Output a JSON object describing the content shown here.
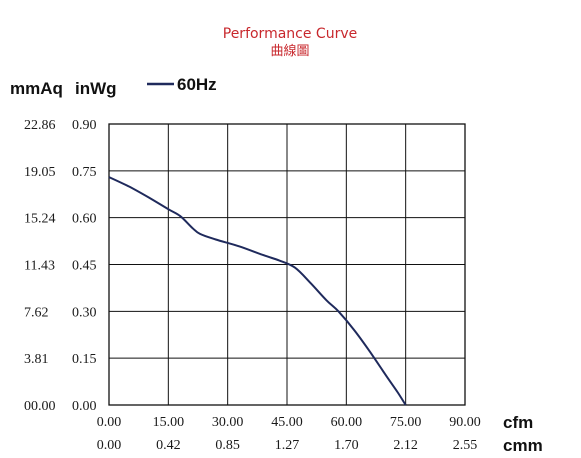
{
  "chart_data": {
    "type": "line",
    "title": "Performance Curve",
    "subtitle": "曲線圖",
    "ylabel_primary": "mmAq",
    "ylabel_secondary": "inWg",
    "xlabel_primary": "cfm",
    "xlabel_secondary": "cmm",
    "xlim": [
      0,
      90
    ],
    "ylim": [
      0,
      0.9
    ],
    "grid": true,
    "legend_position": "top-left",
    "x_ticks": [
      "0.00",
      "15.00",
      "30.00",
      "45.00",
      "60.00",
      "75.00",
      "90.00"
    ],
    "x_ticks_secondary": [
      "0.00",
      "0.42",
      "0.85",
      "1.27",
      "1.70",
      "2.12",
      "2.55"
    ],
    "y_ticks": [
      "0.00",
      "0.15",
      "0.30",
      "0.45",
      "0.60",
      "0.75",
      "0.90"
    ],
    "y_ticks_secondary": [
      "00.00",
      "3.81",
      "7.62",
      "11.43",
      "15.24",
      "19.05",
      "22.86"
    ],
    "series": [
      {
        "name": "60Hz",
        "color": "#1f2a5c",
        "points": [
          {
            "x": 0,
            "y": 0.73
          },
          {
            "x": 5,
            "y": 0.7
          },
          {
            "x": 10,
            "y": 0.665
          },
          {
            "x": 15,
            "y": 0.627
          },
          {
            "x": 18,
            "y": 0.605
          },
          {
            "x": 21,
            "y": 0.568
          },
          {
            "x": 23,
            "y": 0.548
          },
          {
            "x": 27,
            "y": 0.53
          },
          {
            "x": 33,
            "y": 0.508
          },
          {
            "x": 39,
            "y": 0.48
          },
          {
            "x": 43,
            "y": 0.463
          },
          {
            "x": 47,
            "y": 0.44
          },
          {
            "x": 51,
            "y": 0.39
          },
          {
            "x": 55,
            "y": 0.335
          },
          {
            "x": 58,
            "y": 0.3
          },
          {
            "x": 62,
            "y": 0.24
          },
          {
            "x": 66,
            "y": 0.17
          },
          {
            "x": 70,
            "y": 0.095
          },
          {
            "x": 73,
            "y": 0.04
          },
          {
            "x": 75,
            "y": 0.0
          }
        ]
      }
    ]
  }
}
